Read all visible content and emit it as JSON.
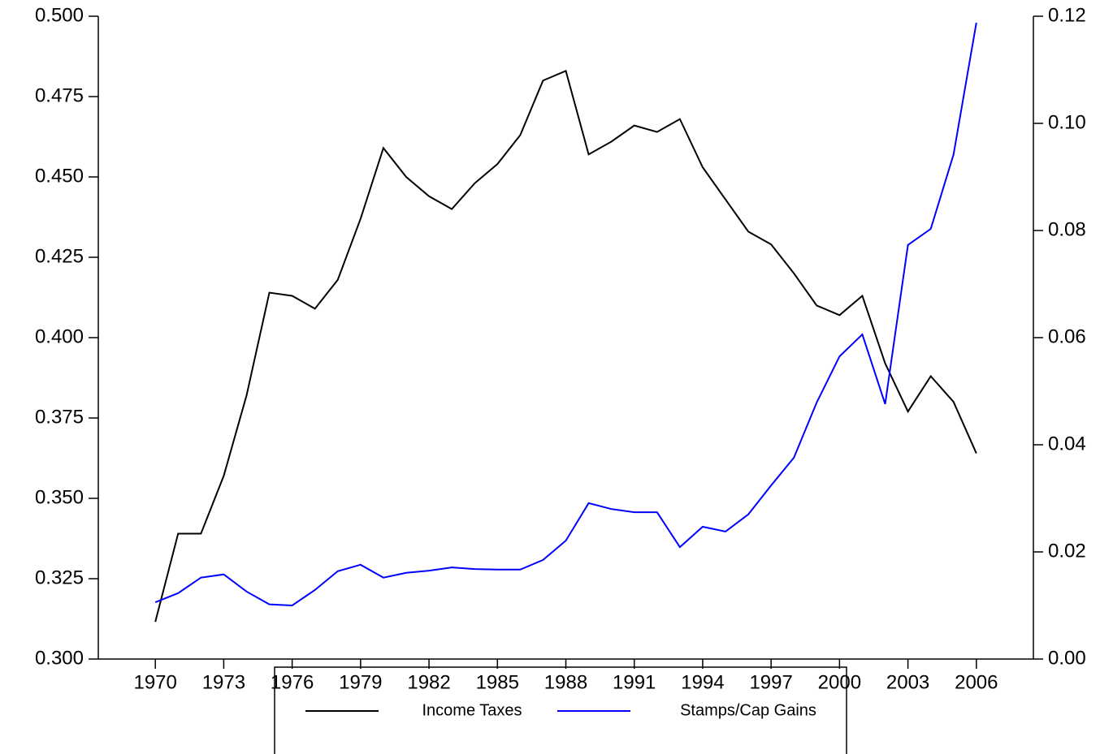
{
  "chart_data": {
    "type": "line",
    "x": [
      1970,
      1971,
      1972,
      1973,
      1974,
      1975,
      1976,
      1977,
      1978,
      1979,
      1980,
      1981,
      1982,
      1983,
      1984,
      1985,
      1986,
      1987,
      1988,
      1989,
      1990,
      1991,
      1992,
      1993,
      1994,
      1995,
      1996,
      1997,
      1998,
      1999,
      2000,
      2001,
      2002,
      2003,
      2004,
      2005,
      2006
    ],
    "xlim": [
      1967.5,
      2008.5
    ],
    "xticks": [
      1970,
      1973,
      1976,
      1979,
      1982,
      1985,
      1988,
      1991,
      1994,
      1997,
      2000,
      2003,
      2006
    ],
    "ylim": [
      0.3,
      0.5
    ],
    "yticks": [
      {
        "value": 0.3,
        "label": "0.300"
      },
      {
        "value": 0.325,
        "label": "0.325"
      },
      {
        "value": 0.35,
        "label": "0.350"
      },
      {
        "value": 0.375,
        "label": "0.375"
      },
      {
        "value": 0.4,
        "label": "0.400"
      },
      {
        "value": 0.425,
        "label": "0.425"
      },
      {
        "value": 0.45,
        "label": "0.450"
      },
      {
        "value": 0.475,
        "label": "0.475"
      },
      {
        "value": 0.5,
        "label": "0.500"
      }
    ],
    "y2lim": [
      0,
      0.12
    ],
    "y2ticks": [
      {
        "value": 0,
        "label": "0.00"
      },
      {
        "value": 0.02,
        "label": "0.02"
      },
      {
        "value": 0.04,
        "label": "0.04"
      },
      {
        "value": 0.06,
        "label": "0.06"
      },
      {
        "value": 0.08,
        "label": "0.08"
      },
      {
        "value": 0.1,
        "label": "0.10"
      },
      {
        "value": 0.12,
        "label": "0.12"
      }
    ],
    "series": [
      {
        "name": "Income Taxes",
        "color": "#000000",
        "values": [
          0.3116,
          0.339,
          0.339,
          0.357,
          0.382,
          0.414,
          0.413,
          0.409,
          0.418,
          0.437,
          0.459,
          0.45,
          0.444,
          0.44,
          0.448,
          0.454,
          0.463,
          0.48,
          0.483,
          0.457,
          0.461,
          0.466,
          0.464,
          0.468,
          0.453,
          0.443,
          0.433,
          0.429,
          0.42,
          0.41,
          0.407,
          0.413,
          0.392,
          0.377,
          0.388,
          0.38,
          0.364
        ]
      },
      {
        "name": "Stamps/Cap Gains",
        "color": "#0000ff",
        "axis": "y2",
        "values": [
          0.0106,
          0.0123,
          0.0152,
          0.0158,
          0.0126,
          0.0102,
          0.01,
          0.0129,
          0.0164,
          0.0176,
          0.0152,
          0.0161,
          0.0165,
          0.0171,
          0.0168,
          0.0167,
          0.0167,
          0.0185,
          0.0221,
          0.0291,
          0.028,
          0.0274,
          0.0274,
          0.0209,
          0.0247,
          0.0238,
          0.027,
          0.0324,
          0.0376,
          0.0479,
          0.0565,
          0.0606,
          0.0476,
          0.0773,
          0.0803,
          0.0942,
          0.1188
        ]
      }
    ]
  }
}
